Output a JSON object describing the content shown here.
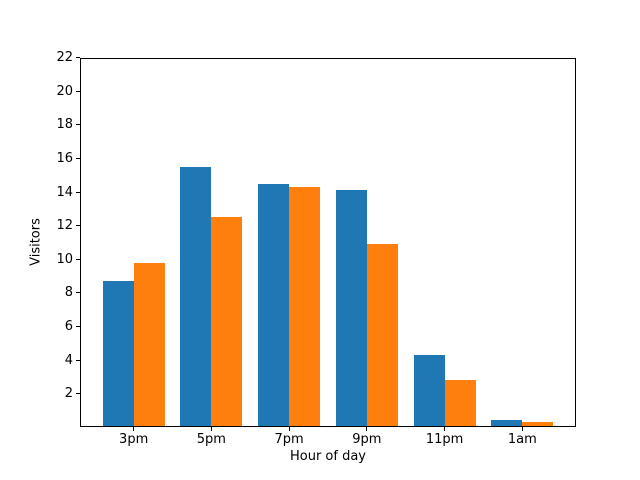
{
  "chart_data": {
    "type": "bar",
    "title": "",
    "xlabel": "Hour of day",
    "ylabel": "Visitors",
    "categories": [
      "3pm",
      "5pm",
      "7pm",
      "9pm",
      "11pm",
      "1am"
    ],
    "series": [
      {
        "color": "#1f77b4",
        "values": [
          8.7,
          15.5,
          14.5,
          14.1,
          4.3,
          0.4
        ]
      },
      {
        "color": "#ff7f0e",
        "values": [
          9.8,
          12.5,
          14.3,
          10.9,
          2.8,
          0.3
        ]
      }
    ],
    "ylim": [
      0,
      22
    ],
    "yticks": [
      2,
      4,
      6,
      8,
      10,
      12,
      14,
      16,
      18,
      20,
      22
    ],
    "xlim": [
      -0.69,
      5.69
    ],
    "bar_width": 0.4,
    "grid": false,
    "legend": null,
    "background_color": "#ffffff",
    "axis_color": "#000000"
  }
}
